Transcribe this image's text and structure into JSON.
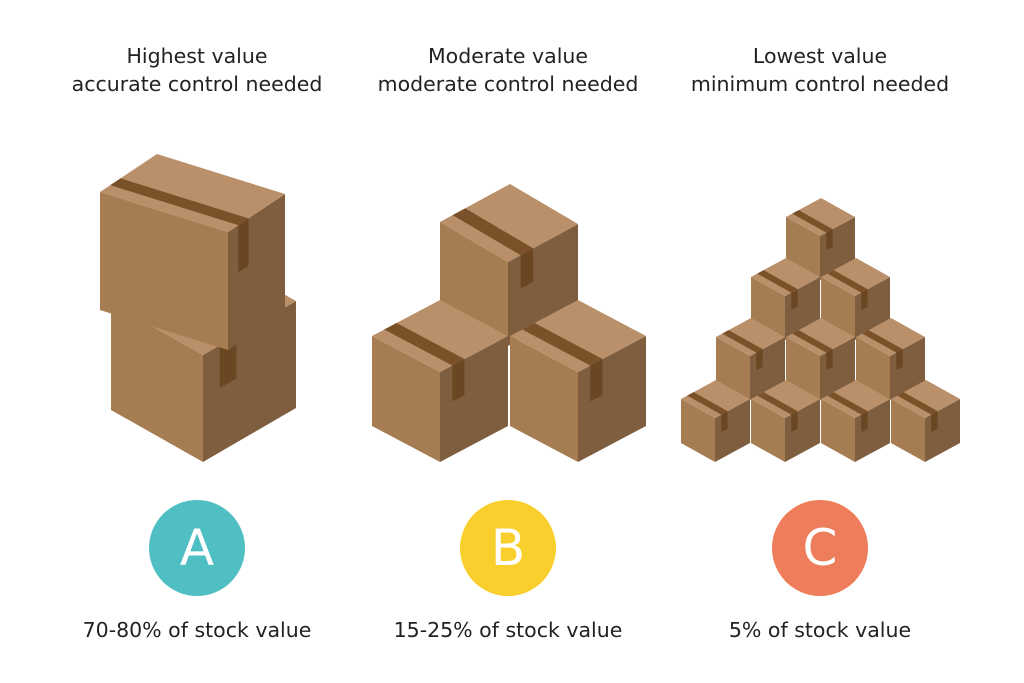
{
  "columns": [
    {
      "heading": "Highest value",
      "subheading": "accurate control needed",
      "letter": "A",
      "caption": "70-80% of stock value",
      "color": "#4fbfc4"
    },
    {
      "heading": "Moderate value",
      "subheading": "moderate control needed",
      "letter": "B",
      "caption": "15-25% of stock value",
      "color": "#f9cf2d"
    },
    {
      "heading": "Lowest value",
      "subheading": "minimum control needed",
      "letter": "C",
      "caption": "5% of stock value",
      "color": "#ee7d5b"
    }
  ],
  "box_colors": {
    "top": "#b99069",
    "left": "#a67c52",
    "right": "#7f5e40",
    "tape_top": "#7a5128",
    "tape_side": "#6a4622"
  }
}
